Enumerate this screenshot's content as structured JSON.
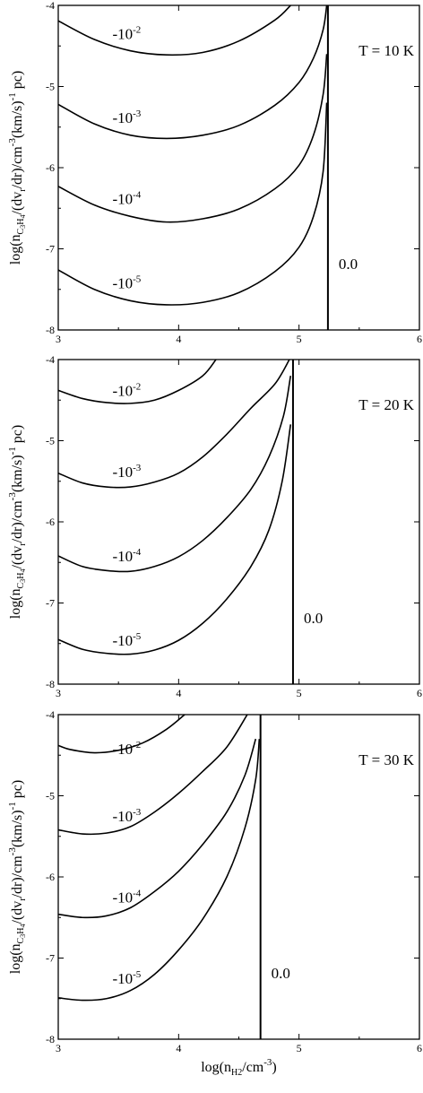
{
  "chart_data": [
    {
      "type": "line",
      "annotation": "T = 10 K",
      "xlim": [
        3,
        6
      ],
      "ylim": [
        -8,
        -4
      ],
      "x_ticks": [
        "3",
        "4",
        "5",
        "6"
      ],
      "y_ticks": [
        "-4",
        "-5",
        "-6",
        "-7",
        "-8"
      ],
      "zero_label": "0.0",
      "zero_x": 5.24,
      "series": [
        {
          "name": "-10-2",
          "label_base": "-10",
          "label_exp": "-2",
          "label_x": 3.45,
          "label_y": -4.35,
          "points": [
            [
              3.0,
              -4.19
            ],
            [
              3.3,
              -4.42
            ],
            [
              3.6,
              -4.56
            ],
            [
              3.9,
              -4.61
            ],
            [
              4.2,
              -4.58
            ],
            [
              4.5,
              -4.44
            ],
            [
              4.8,
              -4.18
            ],
            [
              4.93,
              -4.0
            ]
          ]
        },
        {
          "name": "-10-3",
          "label_base": "-10",
          "label_exp": "-3",
          "label_x": 3.45,
          "label_y": -5.38,
          "points": [
            [
              3.0,
              -5.22
            ],
            [
              3.3,
              -5.46
            ],
            [
              3.6,
              -5.6
            ],
            [
              3.9,
              -5.64
            ],
            [
              4.2,
              -5.6
            ],
            [
              4.5,
              -5.48
            ],
            [
              4.8,
              -5.23
            ],
            [
              5.0,
              -4.95
            ],
            [
              5.12,
              -4.65
            ],
            [
              5.2,
              -4.3
            ],
            [
              5.23,
              -4.0
            ]
          ]
        },
        {
          "name": "-10-4",
          "label_base": "-10",
          "label_exp": "-4",
          "label_x": 3.45,
          "label_y": -6.38,
          "points": [
            [
              3.0,
              -6.23
            ],
            [
              3.3,
              -6.46
            ],
            [
              3.6,
              -6.6
            ],
            [
              3.9,
              -6.67
            ],
            [
              4.2,
              -6.63
            ],
            [
              4.5,
              -6.51
            ],
            [
              4.8,
              -6.26
            ],
            [
              5.0,
              -5.97
            ],
            [
              5.12,
              -5.6
            ],
            [
              5.2,
              -5.1
            ],
            [
              5.23,
              -4.6
            ]
          ]
        },
        {
          "name": "-10-5",
          "label_base": "-10",
          "label_exp": "-5",
          "label_x": 3.45,
          "label_y": -7.42,
          "points": [
            [
              3.0,
              -7.26
            ],
            [
              3.3,
              -7.5
            ],
            [
              3.6,
              -7.64
            ],
            [
              3.9,
              -7.69
            ],
            [
              4.2,
              -7.66
            ],
            [
              4.5,
              -7.54
            ],
            [
              4.8,
              -7.28
            ],
            [
              5.0,
              -6.98
            ],
            [
              5.12,
              -6.6
            ],
            [
              5.2,
              -6.05
            ],
            [
              5.23,
              -5.2
            ]
          ]
        }
      ]
    },
    {
      "type": "line",
      "annotation": "T = 20 K",
      "xlim": [
        3,
        6
      ],
      "ylim": [
        -8,
        -4
      ],
      "x_ticks": [
        "3",
        "4",
        "5",
        "6"
      ],
      "y_ticks": [
        "-4",
        "-5",
        "-6",
        "-7",
        "-8"
      ],
      "zero_label": "0.0",
      "zero_x": 4.95,
      "series": [
        {
          "name": "-10-2",
          "label_base": "-10",
          "label_exp": "-2",
          "label_x": 3.45,
          "label_y": -4.38,
          "points": [
            [
              3.0,
              -4.38
            ],
            [
              3.2,
              -4.48
            ],
            [
              3.4,
              -4.53
            ],
            [
              3.6,
              -4.54
            ],
            [
              3.8,
              -4.5
            ],
            [
              4.0,
              -4.38
            ],
            [
              4.2,
              -4.2
            ],
            [
              4.31,
              -4.0
            ]
          ]
        },
        {
          "name": "-10-3",
          "label_base": "-10",
          "label_exp": "-3",
          "label_x": 3.45,
          "label_y": -5.38,
          "points": [
            [
              3.0,
              -5.4
            ],
            [
              3.2,
              -5.52
            ],
            [
              3.4,
              -5.57
            ],
            [
              3.6,
              -5.57
            ],
            [
              3.8,
              -5.51
            ],
            [
              4.0,
              -5.4
            ],
            [
              4.2,
              -5.2
            ],
            [
              4.4,
              -4.92
            ],
            [
              4.6,
              -4.6
            ],
            [
              4.8,
              -4.3
            ],
            [
              4.92,
              -4.0
            ]
          ]
        },
        {
          "name": "-10-4",
          "label_base": "-10",
          "label_exp": "-4",
          "label_x": 3.45,
          "label_y": -6.42,
          "points": [
            [
              3.0,
              -6.42
            ],
            [
              3.2,
              -6.55
            ],
            [
              3.4,
              -6.6
            ],
            [
              3.6,
              -6.61
            ],
            [
              3.8,
              -6.55
            ],
            [
              4.0,
              -6.43
            ],
            [
              4.2,
              -6.23
            ],
            [
              4.4,
              -5.95
            ],
            [
              4.6,
              -5.6
            ],
            [
              4.75,
              -5.2
            ],
            [
              4.87,
              -4.7
            ],
            [
              4.93,
              -4.2
            ]
          ]
        },
        {
          "name": "-10-5",
          "label_base": "-10",
          "label_exp": "-5",
          "label_x": 3.45,
          "label_y": -7.46,
          "points": [
            [
              3.0,
              -7.45
            ],
            [
              3.2,
              -7.57
            ],
            [
              3.4,
              -7.62
            ],
            [
              3.6,
              -7.63
            ],
            [
              3.8,
              -7.58
            ],
            [
              4.0,
              -7.46
            ],
            [
              4.2,
              -7.25
            ],
            [
              4.4,
              -6.95
            ],
            [
              4.6,
              -6.55
            ],
            [
              4.75,
              -6.1
            ],
            [
              4.86,
              -5.5
            ],
            [
              4.93,
              -4.8
            ]
          ]
        }
      ]
    },
    {
      "type": "line",
      "annotation": "T = 30 K",
      "xlim": [
        3,
        6
      ],
      "ylim": [
        -8,
        -4
      ],
      "x_ticks": [
        "3",
        "4",
        "5",
        "6"
      ],
      "y_ticks": [
        "-4",
        "-5",
        "-6",
        "-7",
        "-8"
      ],
      "xlabel_base": "log(n",
      "xlabel_sub": "H2",
      "xlabel_rest": "/cm",
      "xlabel_exp": "-3",
      "xlabel_close": ")",
      "zero_label": "0.0",
      "zero_x": 4.68,
      "series": [
        {
          "name": "-10-2",
          "label_base": "-10",
          "label_exp": "-2",
          "label_x": 3.45,
          "label_y": -4.42,
          "points": [
            [
              3.0,
              -4.38
            ],
            [
              3.1,
              -4.43
            ],
            [
              3.3,
              -4.47
            ],
            [
              3.5,
              -4.44
            ],
            [
              3.7,
              -4.35
            ],
            [
              3.9,
              -4.18
            ],
            [
              4.05,
              -4.0
            ]
          ]
        },
        {
          "name": "-10-3",
          "label_base": "-10",
          "label_exp": "-3",
          "label_x": 3.45,
          "label_y": -5.25,
          "points": [
            [
              3.0,
              -5.42
            ],
            [
              3.2,
              -5.47
            ],
            [
              3.4,
              -5.46
            ],
            [
              3.6,
              -5.38
            ],
            [
              3.8,
              -5.2
            ],
            [
              4.0,
              -4.97
            ],
            [
              4.2,
              -4.7
            ],
            [
              4.4,
              -4.4
            ],
            [
              4.57,
              -4.0
            ]
          ]
        },
        {
          "name": "-10-4",
          "label_base": "-10",
          "label_exp": "-4",
          "label_x": 3.45,
          "label_y": -6.25,
          "points": [
            [
              3.0,
              -6.46
            ],
            [
              3.2,
              -6.5
            ],
            [
              3.4,
              -6.48
            ],
            [
              3.6,
              -6.38
            ],
            [
              3.8,
              -6.18
            ],
            [
              4.0,
              -5.93
            ],
            [
              4.2,
              -5.6
            ],
            [
              4.4,
              -5.2
            ],
            [
              4.55,
              -4.75
            ],
            [
              4.64,
              -4.3
            ]
          ]
        },
        {
          "name": "-10-5",
          "label_base": "-10",
          "label_exp": "-5",
          "label_x": 3.45,
          "label_y": -7.25,
          "points": [
            [
              3.0,
              -7.49
            ],
            [
              3.2,
              -7.52
            ],
            [
              3.4,
              -7.5
            ],
            [
              3.6,
              -7.4
            ],
            [
              3.8,
              -7.2
            ],
            [
              4.0,
              -6.9
            ],
            [
              4.2,
              -6.52
            ],
            [
              4.4,
              -6.0
            ],
            [
              4.55,
              -5.4
            ],
            [
              4.64,
              -4.8
            ],
            [
              4.67,
              -4.3
            ]
          ]
        }
      ]
    }
  ],
  "ylabel": {
    "prefix": "log(n",
    "sub_main": "C",
    "sub_small1": "3",
    "sub_main2": "H",
    "sub_small2": "4",
    "mid": "/(dv",
    "sub_r": "r",
    "mid2": "/dr)/cm",
    "exp1": "-3",
    "mid3": "(km/s)",
    "exp2": "-1",
    "suffix": " pc)"
  }
}
